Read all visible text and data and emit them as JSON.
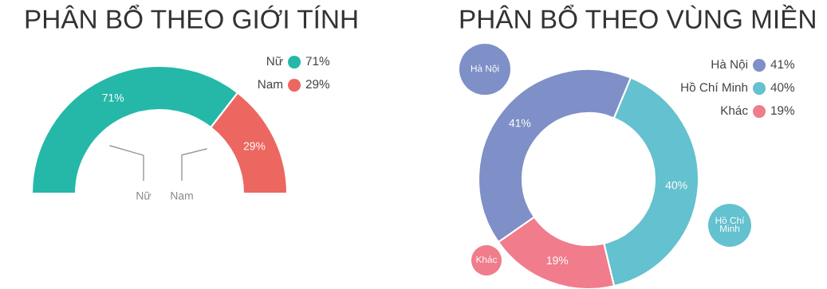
{
  "chart_data": [
    {
      "type": "donut",
      "title": "PHÂN BỔ THEO GIỚI TÍNH",
      "categories": [
        "Nữ",
        "Nam"
      ],
      "values": [
        71,
        29
      ],
      "colors": [
        "#25b8a9",
        "#ec6760"
      ],
      "value_labels": [
        "71%",
        "29%"
      ],
      "legend": "top right"
    },
    {
      "type": "donut",
      "title": "PHÂN BỔ THEO VÙNG MIỀN",
      "categories": [
        "Hà Nội",
        "Hồ Chí Minh",
        "Khác"
      ],
      "values": [
        41,
        40,
        19
      ],
      "colors": [
        "#7f8fc7",
        "#64c1cf",
        "#f07c8c"
      ],
      "value_labels": [
        "41%",
        "40%",
        "19%"
      ],
      "legend": "top right"
    }
  ]
}
